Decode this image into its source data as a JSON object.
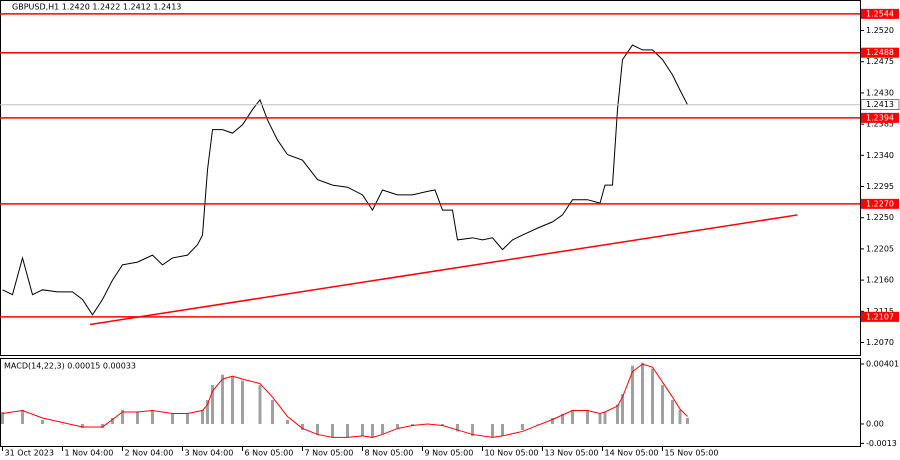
{
  "chart_data": [
    {
      "type": "line",
      "title": "GBPUSD,H1  1.2420 1.2422 1.2412 1.2413",
      "color": "#000000",
      "x": [
        0,
        4,
        8,
        12,
        16,
        22,
        28,
        32,
        36,
        40,
        44,
        48,
        54,
        60,
        64,
        68,
        74,
        78,
        80,
        82,
        84,
        88,
        92,
        96,
        100,
        103,
        106,
        110,
        114,
        120,
        126,
        132,
        138,
        144,
        148,
        152,
        158,
        164,
        170,
        173,
        176,
        180,
        182,
        188,
        192,
        196,
        200,
        204,
        208,
        214,
        220,
        224,
        228,
        234,
        239,
        241,
        244,
        246,
        248,
        252,
        256,
        260,
        264,
        268,
        271,
        274
      ],
      "values": [
        1.2146,
        1.2139,
        1.2192,
        1.2139,
        1.2146,
        1.2143,
        1.2143,
        1.2132,
        1.211,
        1.2132,
        1.216,
        1.2182,
        1.2186,
        1.2196,
        1.2182,
        1.2192,
        1.2196,
        1.2211,
        1.2225,
        1.2319,
        1.2377,
        1.2377,
        1.2372,
        1.2384,
        1.2406,
        1.242,
        1.2391,
        1.2362,
        1.2341,
        1.2333,
        1.2305,
        1.2297,
        1.2294,
        1.2283,
        1.2261,
        1.229,
        1.2283,
        1.2283,
        1.2288,
        1.229,
        1.2261,
        1.2261,
        1.2218,
        1.2221,
        1.2218,
        1.2221,
        1.2204,
        1.2218,
        1.2225,
        1.2235,
        1.2244,
        1.2254,
        1.2276,
        1.2276,
        1.2271,
        1.2297,
        1.2297,
        1.2406,
        1.2478,
        1.2499,
        1.2492,
        1.2492,
        1.2478,
        1.2456,
        1.2434,
        1.2413
      ],
      "xlim": [
        -1,
        343
      ],
      "xticks": [
        {
          "value": 0,
          "label": "31 Oct 2023"
        },
        {
          "value": 24,
          "label": "1 Nov 04:00"
        },
        {
          "value": 48,
          "label": "2 Nov 04:00"
        },
        {
          "value": 72,
          "label": "3 Nov 04:00"
        },
        {
          "value": 96,
          "label": "6 Nov 05:00"
        },
        {
          "value": 120,
          "label": "7 Nov 05:00"
        },
        {
          "value": 144,
          "label": "8 Nov 05:00"
        },
        {
          "value": 168,
          "label": "9 Nov 05:00"
        },
        {
          "value": 192,
          "label": "10 Nov 05:00"
        },
        {
          "value": 216,
          "label": "13 Nov 05:00"
        },
        {
          "value": 240,
          "label": "14 Nov 05:00"
        },
        {
          "value": 264,
          "label": "15 Nov 05:00"
        }
      ],
      "ylim": [
        1.2052,
        1.2564
      ],
      "yticks": [
        {
          "value": 1.252,
          "label": "1.2520"
        },
        1.2475,
        {
          "value": 1.243,
          "label": "1.2430"
        },
        1.2385,
        {
          "value": 1.234,
          "label": "1.2340"
        },
        1.2295,
        {
          "value": 1.225,
          "label": "1.2250"
        },
        1.2205,
        {
          "value": 1.216,
          "label": "1.2160"
        },
        1.2115,
        {
          "value": 1.207,
          "label": "1.2070"
        }
      ],
      "levels": [
        1.2544,
        1.2488,
        1.2394,
        {
          "value": 1.227,
          "label": "1.2270"
        },
        1.2107
      ],
      "level_color": "#ff0000",
      "last_price": 1.2413,
      "trendline": {
        "x": [
          35,
          318
        ],
        "y": [
          1.2096,
          1.2254
        ]
      }
    },
    {
      "type": "bar",
      "title": "MACD(14,22,3) 0.00015 0.00033",
      "color": "#a0a0a0",
      "signal_color": "#ff0000",
      "x": [
        0,
        8,
        16,
        24,
        32,
        40,
        44,
        48,
        54,
        60,
        68,
        74,
        80,
        82,
        84,
        88,
        92,
        96,
        103,
        108,
        114,
        120,
        126,
        132,
        138,
        144,
        148,
        152,
        158,
        164,
        170,
        176,
        182,
        188,
        196,
        200,
        208,
        214,
        220,
        224,
        228,
        234,
        239,
        241,
        246,
        248,
        252,
        256,
        260,
        264,
        268,
        271,
        274
      ],
      "values": [
        0.0008,
        0.00094,
        0.00027,
        0,
        -0.00027,
        -0.00027,
        0.0004,
        0.00094,
        0.0008,
        0.00094,
        0.00067,
        0.00067,
        0.00094,
        0.0016,
        0.0026,
        0.0033,
        0.0032,
        0.0029,
        0.0026,
        0.0016,
        0.00027,
        -0.0004,
        -0.00074,
        -0.0009,
        -0.00087,
        -0.0008,
        -0.0009,
        -0.00067,
        -0.00027,
        -0.00013,
        0,
        -0.00013,
        -0.0005,
        -0.0008,
        -0.0009,
        -0.0008,
        -0.0004,
        0,
        0.0004,
        0.00067,
        0.00094,
        0.00094,
        0.00067,
        0.0008,
        0.0013,
        0.002,
        0.0039,
        0.0041,
        0.0037,
        0.0026,
        0.0016,
        0.00094,
        0.0004
      ],
      "signal": [
        0.0007,
        0.0009,
        0.0004,
        0.0001,
        -0.0002,
        -0.0002,
        0.0003,
        0.0008,
        0.0008,
        0.0009,
        0.0007,
        0.0007,
        0.0009,
        0.0013,
        0.0022,
        0.003,
        0.0032,
        0.003,
        0.0027,
        0.0018,
        0.0005,
        -0.0003,
        -0.0007,
        -0.0009,
        -0.0009,
        -0.0008,
        -0.0009,
        -0.0007,
        -0.0003,
        -0.0001,
        0,
        -0.0001,
        -0.0004,
        -0.0007,
        -0.0009,
        -0.0008,
        -0.0005,
        -0.0001,
        0.0003,
        0.0006,
        0.0009,
        0.0009,
        0.0007,
        0.0008,
        0.0012,
        0.0018,
        0.0035,
        0.004,
        0.0038,
        0.0028,
        0.0018,
        0.001,
        0.0005
      ],
      "ylim": [
        -0.00154,
        0.00441
      ],
      "yticks": [
        0.00401,
        {
          "value": 0,
          "label": "0.00"
        },
        -0.0013
      ]
    }
  ]
}
